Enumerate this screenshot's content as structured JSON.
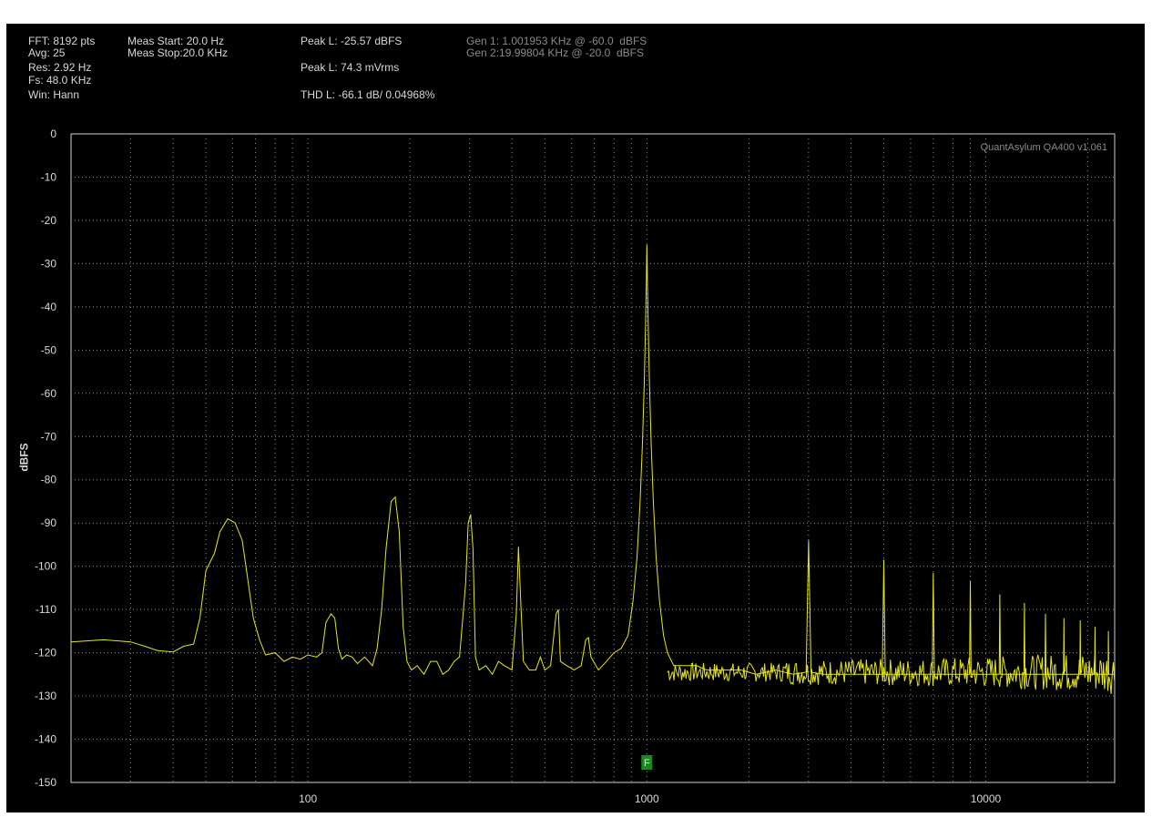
{
  "header": {
    "fft": "FFT: 8192 pts",
    "avg": "Avg: 25",
    "res": "Res: 2.92 Hz",
    "fs": "Fs: 48.0 KHz",
    "win": "Win: Hann",
    "meas_start": "Meas Start: 20.0 Hz",
    "meas_stop": "Meas Stop:20.0 KHz",
    "peak_dbfs": "Peak L: -25.57 dBFS",
    "peak_vrms": "Peak L: 74.3 mVrms",
    "thd": "THD L: -66.1 dB/ 0.04968%",
    "gen1": "Gen 1: 1.001953 KHz @ -60.0  dBFS",
    "gen2": "Gen 2:19.99804 KHz @ -20.0  dBFS"
  },
  "watermark": "QuantAsylum QA400 v1.061",
  "marker_label": "F",
  "colors": {
    "trace": "#e6e61e",
    "grid": "#8c8c8c",
    "marker": "#1a8a1a"
  },
  "chart_data": {
    "type": "line",
    "title": "",
    "xlabel": "",
    "ylabel": "dBFS",
    "x_scale": "log",
    "xlim": [
      20,
      24000
    ],
    "ylim": [
      -150,
      0
    ],
    "x_ticks": [
      100,
      1000,
      10000
    ],
    "y_ticks": [
      0,
      -10,
      -20,
      -30,
      -40,
      -50,
      -60,
      -70,
      -80,
      -90,
      -100,
      -110,
      -120,
      -130,
      -140,
      -150
    ],
    "grid": true,
    "marker_x": 1000,
    "series": [
      {
        "name": "",
        "points": [
          [
            20,
            -117.5
          ],
          [
            25,
            -117
          ],
          [
            30,
            -117.5
          ],
          [
            33,
            -118.5
          ],
          [
            36,
            -119.5
          ],
          [
            40,
            -119.8
          ],
          [
            43,
            -118.5
          ],
          [
            46,
            -118
          ],
          [
            48,
            -112
          ],
          [
            50,
            -101
          ],
          [
            53,
            -97
          ],
          [
            55,
            -92
          ],
          [
            58,
            -89
          ],
          [
            61,
            -90
          ],
          [
            64,
            -94
          ],
          [
            67,
            -105
          ],
          [
            69,
            -112
          ],
          [
            72,
            -117
          ],
          [
            75,
            -120.5
          ],
          [
            80,
            -120
          ],
          [
            85,
            -122
          ],
          [
            90,
            -121
          ],
          [
            95,
            -121.5
          ],
          [
            100,
            -120.5
          ],
          [
            106,
            -121
          ],
          [
            110,
            -120
          ],
          [
            113,
            -113
          ],
          [
            117,
            -111
          ],
          [
            120,
            -112
          ],
          [
            123,
            -119
          ],
          [
            126,
            -121.5
          ],
          [
            130,
            -120.5
          ],
          [
            135,
            -121
          ],
          [
            140,
            -122.5
          ],
          [
            147,
            -121
          ],
          [
            155,
            -123
          ],
          [
            160,
            -119
          ],
          [
            165,
            -110
          ],
          [
            170,
            -96
          ],
          [
            176,
            -85
          ],
          [
            181,
            -84
          ],
          [
            186,
            -92
          ],
          [
            191,
            -114
          ],
          [
            196,
            -122
          ],
          [
            202,
            -124
          ],
          [
            210,
            -123
          ],
          [
            220,
            -125
          ],
          [
            230,
            -122
          ],
          [
            240,
            -122
          ],
          [
            250,
            -125
          ],
          [
            260,
            -124
          ],
          [
            270,
            -122
          ],
          [
            280,
            -121
          ],
          [
            292,
            -104
          ],
          [
            297,
            -90
          ],
          [
            302,
            -88
          ],
          [
            307,
            -96
          ],
          [
            312,
            -121
          ],
          [
            320,
            -124
          ],
          [
            335,
            -123
          ],
          [
            350,
            -125
          ],
          [
            365,
            -122
          ],
          [
            380,
            -123
          ],
          [
            400,
            -124
          ],
          [
            412,
            -111
          ],
          [
            418,
            -95.5
          ],
          [
            424,
            -107
          ],
          [
            432,
            -122
          ],
          [
            450,
            -124
          ],
          [
            470,
            -124
          ],
          [
            485,
            -121
          ],
          [
            500,
            -124
          ],
          [
            520,
            -123
          ],
          [
            540,
            -111
          ],
          [
            548,
            -110
          ],
          [
            556,
            -122
          ],
          [
            580,
            -123
          ],
          [
            610,
            -124
          ],
          [
            640,
            -123
          ],
          [
            660,
            -117
          ],
          [
            672,
            -116.5
          ],
          [
            684,
            -121
          ],
          [
            720,
            -124
          ],
          [
            760,
            -122
          ],
          [
            800,
            -120
          ],
          [
            840,
            -119
          ],
          [
            880,
            -116
          ],
          [
            910,
            -108
          ],
          [
            935,
            -98
          ],
          [
            955,
            -85
          ],
          [
            970,
            -72
          ],
          [
            982,
            -58
          ],
          [
            991,
            -44
          ],
          [
            997,
            -33
          ],
          [
            1000,
            -25.6
          ],
          [
            1003,
            -33
          ],
          [
            1009,
            -44
          ],
          [
            1018,
            -58
          ],
          [
            1030,
            -72
          ],
          [
            1045,
            -85
          ],
          [
            1065,
            -98
          ],
          [
            1090,
            -108
          ],
          [
            1120,
            -116
          ],
          [
            1150,
            -120
          ],
          [
            1200,
            -123
          ],
          [
            1300,
            -123
          ],
          [
            1400,
            -123
          ],
          [
            1500,
            -124
          ],
          [
            1700,
            -124
          ],
          [
            1900,
            -124
          ],
          [
            2100,
            -125
          ],
          [
            2400,
            -124
          ],
          [
            2700,
            -125
          ],
          [
            2950,
            -124.5
          ],
          [
            3000,
            -94
          ],
          [
            3050,
            -124.5
          ],
          [
            3300,
            -125
          ],
          [
            3700,
            -125
          ],
          [
            4200,
            -125
          ],
          [
            4950,
            -125
          ],
          [
            5000,
            -98.5
          ],
          [
            5050,
            -125
          ],
          [
            5700,
            -125
          ],
          [
            6500,
            -125
          ],
          [
            6950,
            -125
          ],
          [
            7000,
            -101.5
          ],
          [
            7050,
            -125
          ],
          [
            8000,
            -125
          ],
          [
            8950,
            -125
          ],
          [
            9000,
            -103.5
          ],
          [
            9050,
            -125
          ],
          [
            10000,
            -125
          ],
          [
            10950,
            -125
          ],
          [
            11000,
            -106.5
          ],
          [
            11050,
            -125
          ],
          [
            12000,
            -125
          ],
          [
            12950,
            -125
          ],
          [
            13000,
            -108.5
          ],
          [
            13050,
            -125
          ],
          [
            14000,
            -125
          ],
          [
            14950,
            -125
          ],
          [
            15000,
            -111
          ],
          [
            15050,
            -125
          ],
          [
            16000,
            -125
          ],
          [
            16950,
            -125
          ],
          [
            17000,
            -112
          ],
          [
            17050,
            -125
          ],
          [
            18000,
            -125
          ],
          [
            18950,
            -125
          ],
          [
            19000,
            -112.5
          ],
          [
            19050,
            -125
          ],
          [
            20000,
            -125
          ],
          [
            20950,
            -125
          ],
          [
            21000,
            -114
          ],
          [
            21050,
            -125
          ],
          [
            22000,
            -125
          ],
          [
            22950,
            -125
          ],
          [
            23000,
            -115
          ],
          [
            23050,
            -125
          ],
          [
            24000,
            -125
          ]
        ]
      }
    ]
  }
}
